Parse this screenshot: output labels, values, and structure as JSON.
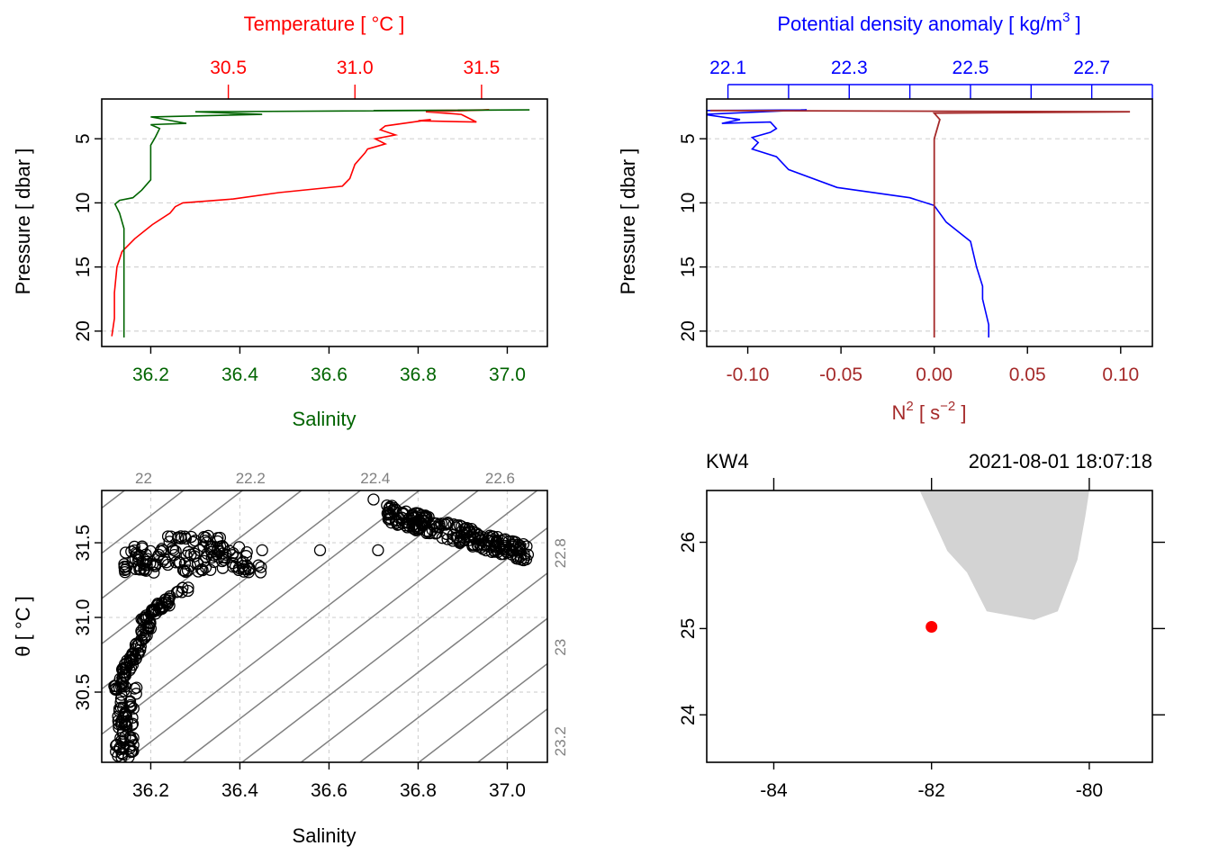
{
  "colors": {
    "temperature": "#ff0000",
    "salinity": "#006400",
    "density": "#0000ff",
    "n2": "#a52a2a",
    "isopycnal": "#808080",
    "grid": "#d3d3d3",
    "coast": "#d3d3d3",
    "station": "#ff0000"
  },
  "chart_data": [
    {
      "type": "line",
      "panel": "top-left",
      "title": "",
      "top_axis_label": "Temperature [ °C ]",
      "bottom_axis_label": "Salinity",
      "ylabel": "Pressure [ dbar ]",
      "top_ticks": [
        "30.5",
        "31.0",
        "31.5"
      ],
      "bottom_ticks": [
        "36.2",
        "36.4",
        "36.6",
        "36.8",
        "37.0"
      ],
      "y_ticks": [
        "5",
        "10",
        "15",
        "20"
      ],
      "xlim_salinity": [
        36.09,
        37.09
      ],
      "xlim_temperature": [
        30.0,
        31.76
      ],
      "ylim_reversed": [
        21.2,
        1.9
      ],
      "grid": true,
      "series": [
        {
          "name": "Temperature",
          "x": [
            31.28,
            31.53,
            31.28,
            31.42,
            31.48,
            31.25,
            31.3,
            31.12,
            31.1,
            31.16,
            31.08,
            31.12,
            31.05,
            31.04,
            31.0,
            30.98,
            30.95,
            30.7,
            30.52,
            30.32,
            30.29,
            30.27,
            30.2,
            30.13,
            30.08,
            30.06,
            30.05,
            30.05,
            30.04
          ],
          "y": [
            2.8,
            2.75,
            2.9,
            3.1,
            3.7,
            3.6,
            3.5,
            4.0,
            4.3,
            4.7,
            5.0,
            5.4,
            5.8,
            6.1,
            7.0,
            8.1,
            8.7,
            9.2,
            9.7,
            10.0,
            10.3,
            10.8,
            11.7,
            12.8,
            13.8,
            15.0,
            17.0,
            19.0,
            20.4
          ]
        },
        {
          "name": "Salinity",
          "x": [
            36.7,
            37.05,
            36.3,
            36.45,
            36.2,
            36.28,
            36.2,
            36.22,
            36.21,
            36.2,
            36.2,
            36.2,
            36.2,
            36.18,
            36.16,
            36.13,
            36.12,
            36.13,
            36.14,
            36.14,
            36.14,
            36.14,
            36.14,
            36.14
          ],
          "y": [
            2.8,
            2.75,
            2.9,
            3.1,
            3.3,
            3.8,
            3.9,
            4.2,
            4.9,
            5.5,
            6.5,
            7.5,
            8.2,
            9.0,
            9.6,
            9.8,
            10.1,
            10.8,
            12.0,
            14.0,
            15.5,
            17.0,
            19.0,
            20.5
          ]
        }
      ]
    },
    {
      "type": "line",
      "panel": "top-right",
      "title": "",
      "top_axis_label": "Potential density anomaly [ kg/m",
      "top_axis_sup": "3",
      "top_axis_label_end": " ]",
      "bottom_axis_label": "N",
      "bottom_axis_sup": "2",
      "bottom_axis_unit": " [ s",
      "bottom_axis_unit_sup": "−2",
      "bottom_axis_unit_end": " ]",
      "ylabel": "Pressure [ dbar ]",
      "top_ticks": [
        "22.1",
        "22.3",
        "22.5",
        "22.7"
      ],
      "bottom_ticks": [
        "-0.10",
        "-0.05",
        "0.00",
        "0.05",
        "0.10"
      ],
      "y_ticks": [
        "5",
        "10",
        "15",
        "20"
      ],
      "xlim_density": [
        22.065,
        22.8
      ],
      "xlim_n2": [
        -0.122,
        0.117
      ],
      "ylim_reversed": [
        21.2,
        1.9
      ],
      "grid": true,
      "series": [
        {
          "name": "Potential density anomaly",
          "x": [
            22.06,
            22.23,
            22.06,
            22.12,
            22.09,
            22.17,
            22.18,
            22.17,
            22.14,
            22.15,
            22.14,
            22.18,
            22.2,
            22.28,
            22.4,
            22.44,
            22.46,
            22.5,
            22.51,
            22.52,
            22.52,
            22.53,
            22.53
          ],
          "y": [
            2.8,
            2.75,
            3.1,
            3.5,
            3.8,
            3.7,
            4.2,
            4.5,
            4.9,
            5.3,
            5.8,
            6.4,
            7.4,
            8.8,
            9.6,
            10.2,
            11.5,
            13.0,
            15.0,
            16.5,
            17.5,
            19.5,
            20.5
          ]
        },
        {
          "name": "N2",
          "x": [
            -0.12,
            0.105,
            0.0,
            0.003,
            0.0,
            0.0,
            0.0,
            0.0,
            0.0
          ],
          "y": [
            2.8,
            2.9,
            3.0,
            3.5,
            5.0,
            10.0,
            15.0,
            18.0,
            20.5
          ]
        }
      ]
    },
    {
      "type": "scatter",
      "panel": "bottom-left",
      "title": "",
      "xlabel": "Salinity",
      "ylabel": "θ [ °C ]",
      "x_ticks": [
        "36.2",
        "36.4",
        "36.6",
        "36.8",
        "37.0"
      ],
      "y_ticks": [
        "30.5",
        "31.0",
        "31.5"
      ],
      "xlim": [
        36.09,
        37.09
      ],
      "ylim": [
        30.03,
        31.85
      ],
      "isopycnal_top_labels": [
        "22",
        "22.2",
        "22.4",
        "22.6"
      ],
      "isopycnal_right_labels": [
        "22.8",
        "23",
        "23.2"
      ],
      "grid": true,
      "clusters": [
        {
          "x": [
            36.12,
            36.2
          ],
          "y": [
            30.05,
            30.55
          ]
        },
        {
          "x": [
            36.13,
            36.2
          ],
          "y": [
            30.5,
            30.95
          ]
        },
        {
          "x": [
            36.18,
            36.28
          ],
          "y": [
            30.95,
            31.2
          ]
        },
        {
          "x": [
            36.14,
            36.45
          ],
          "y": [
            31.3,
            31.48
          ]
        },
        {
          "x": [
            36.22,
            36.38
          ],
          "y": [
            31.5,
            31.55
          ]
        },
        {
          "x": [
            36.73,
            37.05
          ],
          "y": [
            31.35,
            31.72
          ]
        }
      ],
      "points": [
        {
          "x": 36.45,
          "y": 31.45
        },
        {
          "x": 36.58,
          "y": 31.45
        },
        {
          "x": 36.71,
          "y": 31.45
        },
        {
          "x": 36.7,
          "y": 31.79
        },
        {
          "x": 36.73,
          "y": 31.75
        }
      ]
    },
    {
      "type": "map",
      "panel": "bottom-right",
      "title": "KW4",
      "timestamp": "2021-08-01 18:07:18",
      "x_ticks": [
        "-84",
        "-82",
        "-80"
      ],
      "y_ticks": [
        "24",
        "25",
        "26"
      ],
      "xlim": [
        -84.85,
        -79.2
      ],
      "ylim": [
        23.45,
        26.6
      ],
      "station": {
        "lon": -82.0,
        "lat": 25.02
      },
      "coast": {
        "lon": [
          -82.15,
          -81.8,
          -81.55,
          -81.3,
          -80.7,
          -80.4,
          -80.15,
          -80.05,
          -80.0
        ],
        "lat": [
          26.6,
          25.9,
          25.65,
          25.2,
          25.1,
          25.2,
          25.8,
          26.3,
          26.6
        ]
      }
    }
  ]
}
